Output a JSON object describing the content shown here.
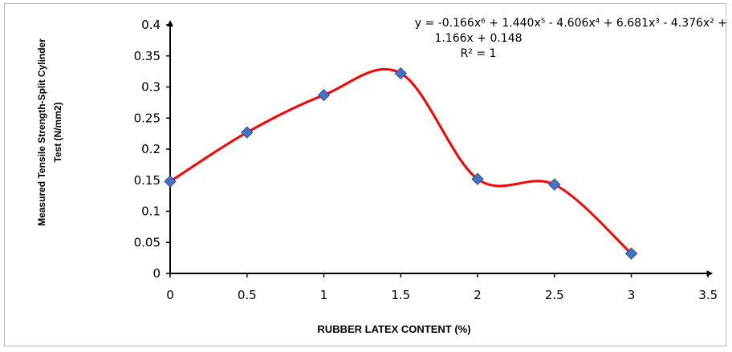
{
  "chart_data": {
    "type": "scatter",
    "xlabel": "RUBBER LATEX CONTENT (%)",
    "ylabel_lines": [
      "Measured Tensile Strength-Split Cylinder",
      "Test (N/mm2)"
    ],
    "xlim": [
      0,
      3.5
    ],
    "ylim": [
      0,
      0.4
    ],
    "xticks": [
      0,
      0.5,
      1,
      1.5,
      2,
      2.5,
      3,
      3.5
    ],
    "xtick_labels": [
      "0",
      "0.5",
      "1",
      "1.5",
      "2",
      "2.5",
      "3",
      "3.5"
    ],
    "yticks": [
      0,
      0.05,
      0.1,
      0.15,
      0.2,
      0.25,
      0.3,
      0.35,
      0.4
    ],
    "ytick_labels": [
      "0",
      "0.05",
      "0.1",
      "0.15",
      "0.2",
      "0.25",
      "0.3",
      "0.35",
      "0.4"
    ],
    "series": [
      {
        "x": [
          0,
          0.5,
          1,
          1.5,
          2,
          2.5,
          3
        ],
        "y": [
          0.148,
          0.227,
          0.287,
          0.322,
          0.152,
          0.143,
          0.032
        ],
        "marker": "diamond",
        "color": "#4472C4"
      }
    ],
    "trendline": {
      "type": "polynomial",
      "order": 6,
      "color": "#FF0000",
      "coefficients": [
        -0.166,
        1.44,
        -4.606,
        6.681,
        -4.376,
        1.166,
        0.148
      ]
    },
    "equation_lines": [
      "y = -0.166x⁶ + 1.440x⁵ - 4.606x⁴ + 6.681x³ - 4.376x² +",
      "1.166x + 0.148",
      "R² = 1"
    ],
    "grid": false,
    "legend": "none"
  }
}
